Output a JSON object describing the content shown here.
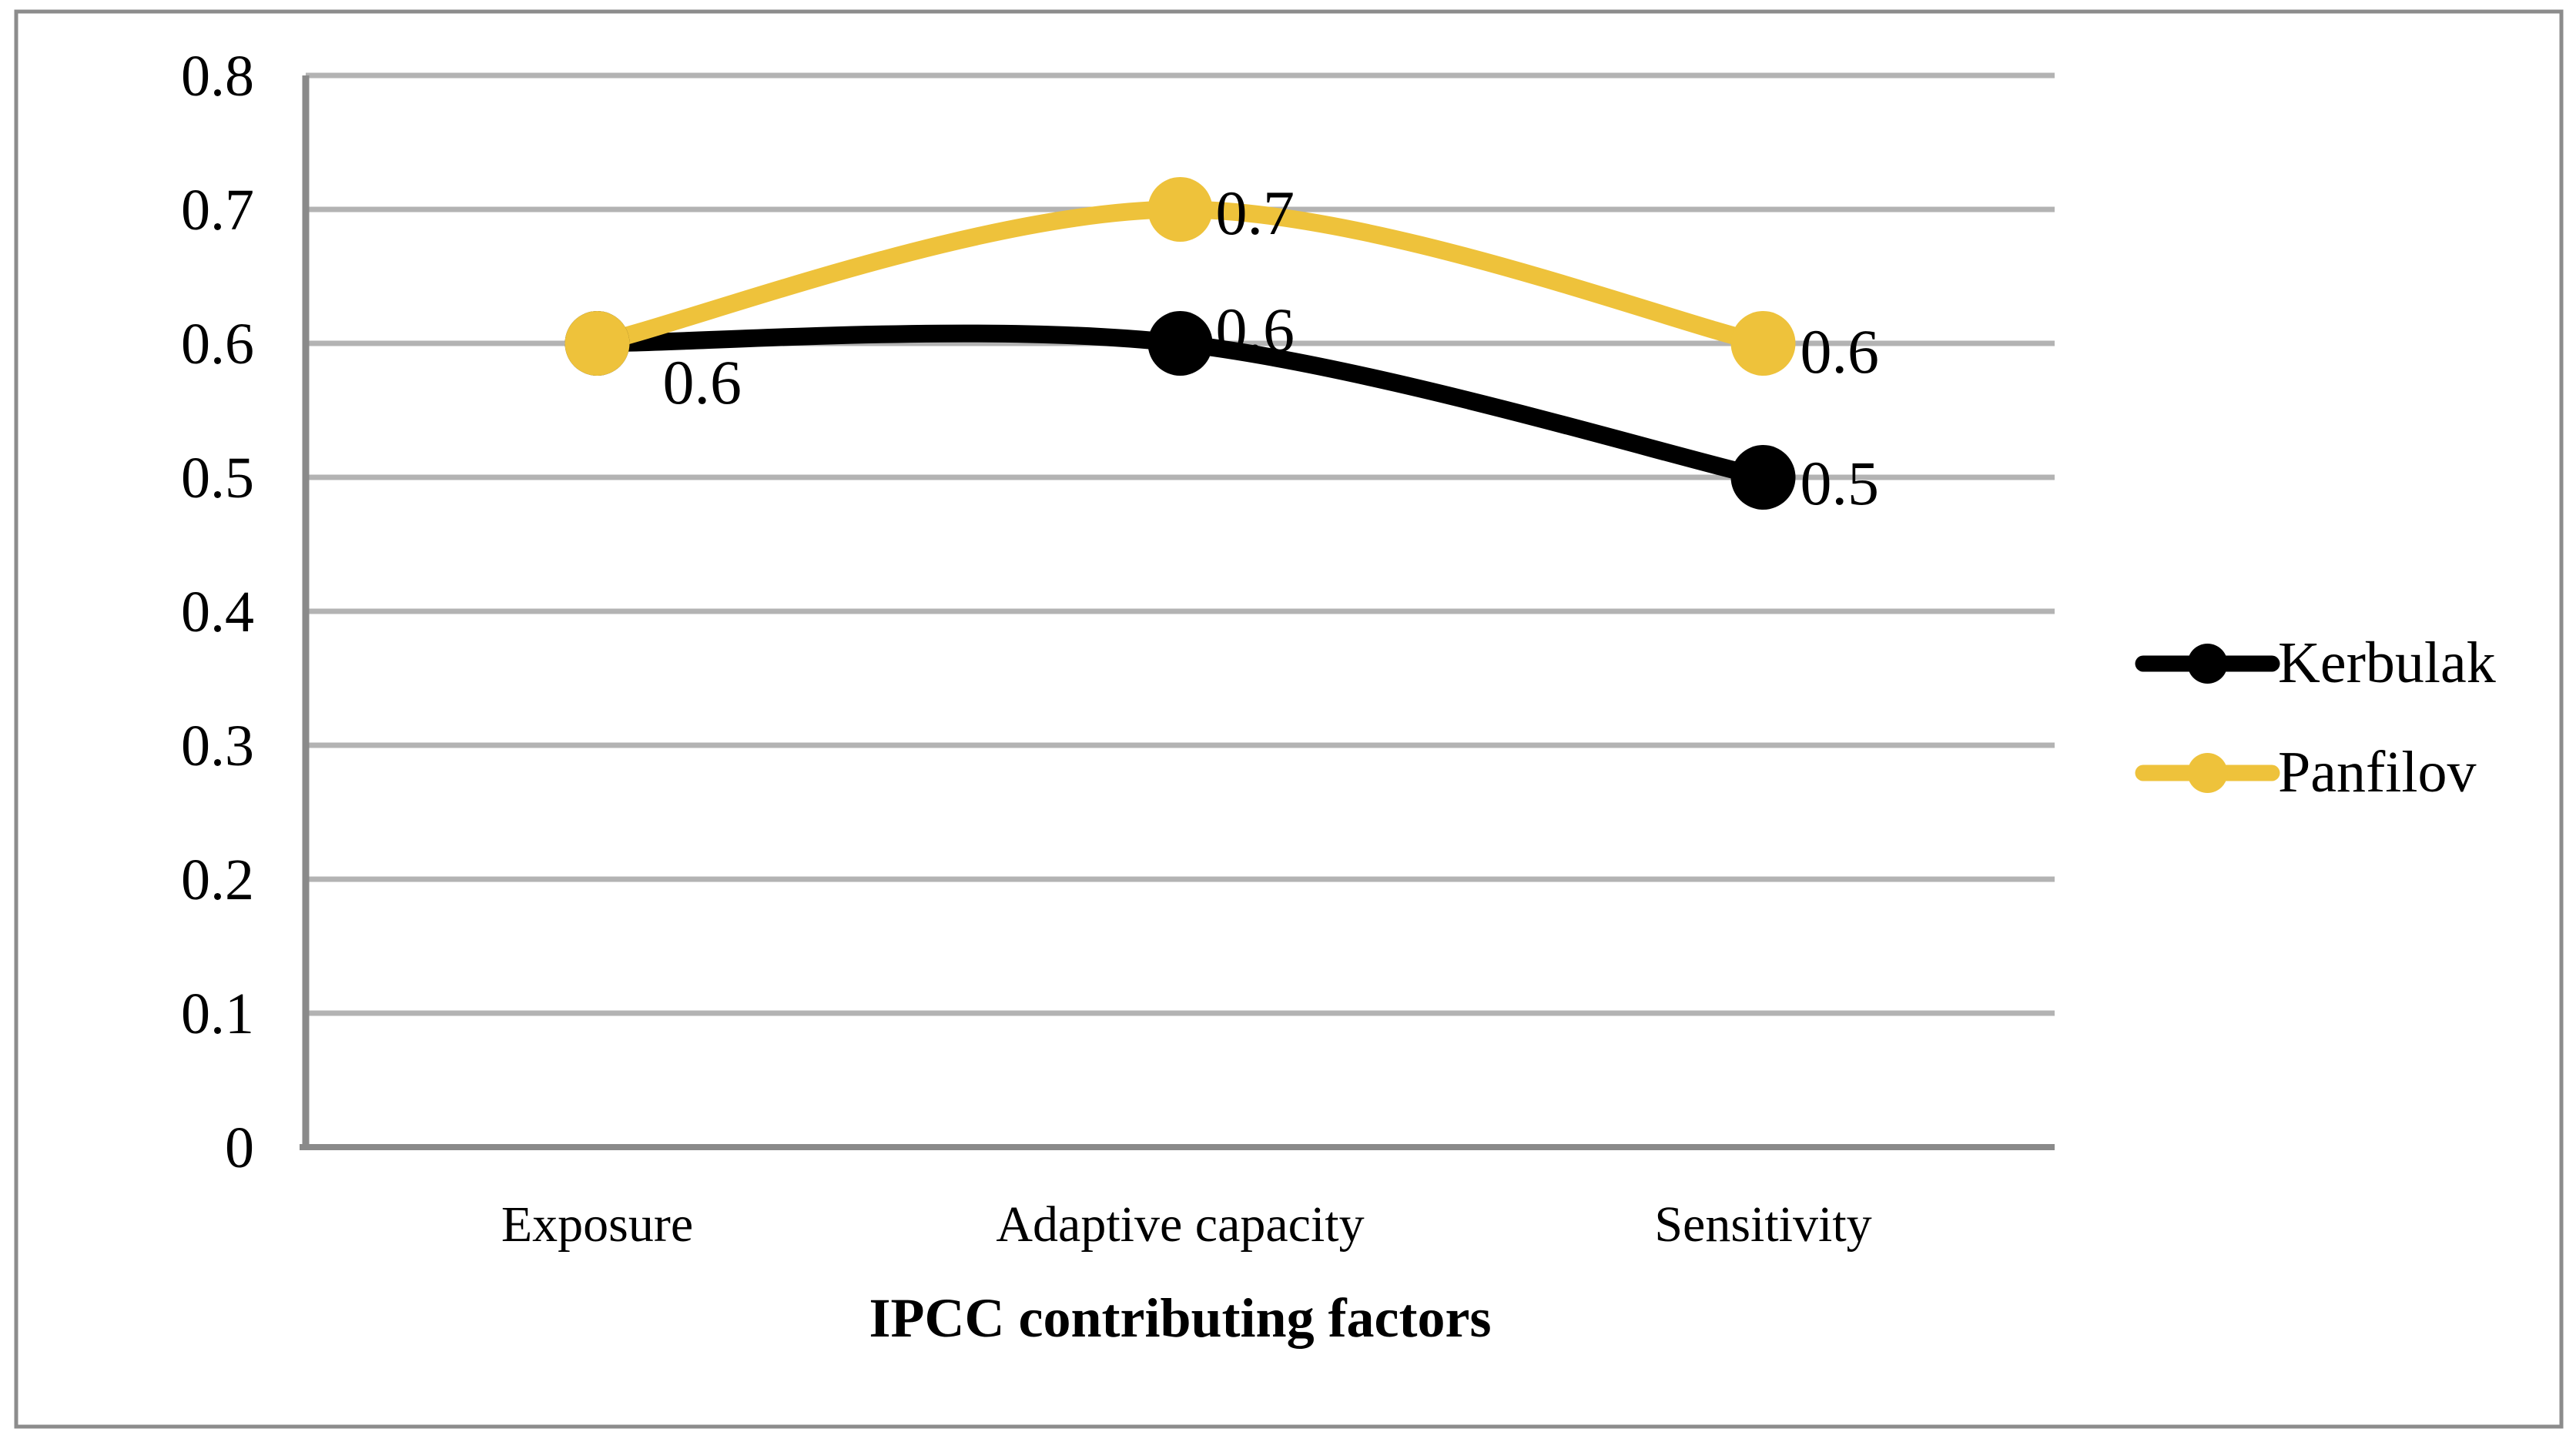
{
  "chart_data": {
    "type": "line",
    "categories": [
      "Exposure",
      "Adaptive capacity",
      "Sensitivity"
    ],
    "series": [
      {
        "name": "Kerbulak",
        "color": "#000000",
        "values": [
          0.6,
          0.6,
          0.5
        ],
        "point_labels": [
          "0.6",
          "0.6",
          "0.5"
        ]
      },
      {
        "name": "Panfilov",
        "color": "#EEC23B",
        "values": [
          0.6,
          0.7,
          0.6
        ],
        "point_labels": [
          "",
          "0.7",
          "0.6"
        ]
      }
    ],
    "title": "",
    "xlabel": "IPCC contributing factors",
    "ylabel": "",
    "ylim": [
      0,
      0.8
    ],
    "ytick_step": 0.1,
    "ytick_labels": [
      "0",
      "0.1",
      "0.2",
      "0.3",
      "0.4",
      "0.5",
      "0.6",
      "0.7",
      "0.8"
    ],
    "grid": true,
    "smooth": true,
    "legend_position": "right",
    "legend_entries": [
      "Kerbulak",
      "Panfilov"
    ]
  },
  "colors": {
    "background": "#FFFFFF",
    "gridline": "#B3B3B3",
    "axis_line": "#8A8A8A",
    "figure_border": "#8C8C8C",
    "text": "#000000",
    "kerbulak": "#000000",
    "panfilov": "#EEC23B"
  }
}
